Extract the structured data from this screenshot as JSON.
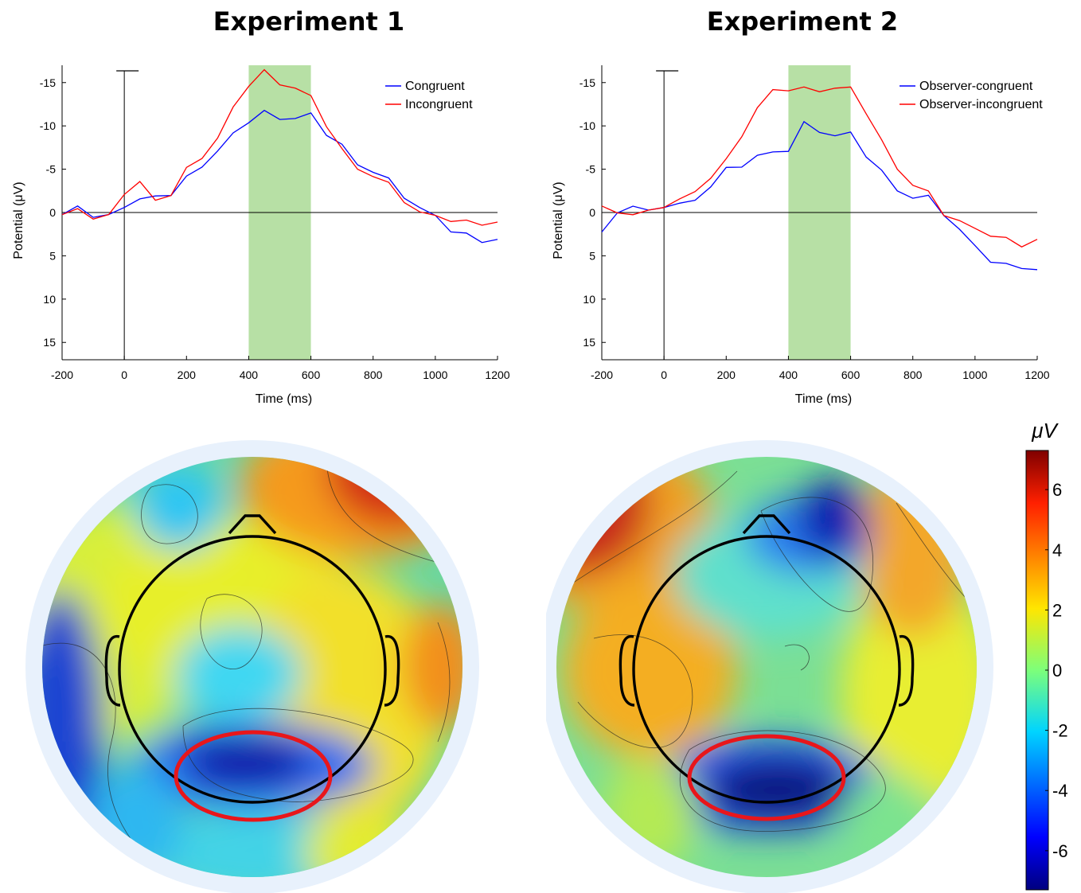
{
  "chart_data": [
    {
      "type": "line",
      "title": "Experiment 1",
      "xlabel": "Time (ms)",
      "ylabel": "Potential (μV)",
      "xlim": [
        -200,
        1200
      ],
      "ylim": [
        17,
        -17
      ],
      "y_inverted": true,
      "xticks": [
        "-200",
        "0",
        "200",
        "400",
        "600",
        "800",
        "1000",
        "1200"
      ],
      "yticks": [
        "-15",
        "-10",
        "-5",
        "0",
        "5",
        "10",
        "15"
      ],
      "highlight_window": [
        400,
        600
      ],
      "highlight_color": "#b7e0a5",
      "legend_position": "top-right",
      "x": [
        -200,
        -150,
        -100,
        -50,
        0,
        50,
        100,
        150,
        200,
        250,
        300,
        350,
        400,
        450,
        500,
        550,
        600,
        650,
        700,
        750,
        800,
        850,
        900,
        950,
        1000,
        1050,
        1100,
        1150,
        1200
      ],
      "series": [
        {
          "name": "Congruent",
          "color": "#0000ff",
          "values": [
            0,
            -0.8,
            0.8,
            0,
            -0.5,
            -1.5,
            -2,
            -2,
            -4,
            -5.5,
            -7,
            -9,
            -10.8,
            -11.3,
            -11,
            -11,
            -11,
            -9.5,
            -7.5,
            -5.5,
            -5,
            -3.5,
            -2,
            -0.5,
            0.5,
            2,
            2.5,
            3.5,
            3
          ]
        },
        {
          "name": "Incongruent",
          "color": "#ff0000",
          "values": [
            0,
            -0.5,
            1,
            0,
            -2,
            -3.5,
            -1.5,
            -2,
            -5,
            -6.5,
            -8.5,
            -12,
            -15,
            -16,
            -15,
            -14.5,
            -13,
            -10.5,
            -7,
            -5,
            -4.5,
            -3,
            -1.5,
            0,
            0.5,
            0.8,
            1,
            1.5,
            1
          ]
        }
      ]
    },
    {
      "type": "line",
      "title": "Experiment 2",
      "xlabel": "Time (ms)",
      "ylabel": "Potential (μV)",
      "xlim": [
        -200,
        1200
      ],
      "ylim": [
        17,
        -17
      ],
      "y_inverted": true,
      "xticks": [
        "-200",
        "0",
        "200",
        "400",
        "600",
        "800",
        "1000",
        "1200"
      ],
      "yticks": [
        "-15",
        "-10",
        "-5",
        "0",
        "5",
        "10",
        "15"
      ],
      "highlight_window": [
        400,
        600
      ],
      "highlight_color": "#b7e0a5",
      "legend_position": "top-right",
      "x": [
        -200,
        -150,
        -100,
        -50,
        0,
        50,
        100,
        150,
        200,
        250,
        300,
        350,
        400,
        450,
        500,
        550,
        600,
        650,
        700,
        750,
        800,
        850,
        900,
        950,
        1000,
        1050,
        1100,
        1150,
        1200
      ],
      "series": [
        {
          "name": "Observer-congruent",
          "color": "#0000ff",
          "values": [
            2,
            0,
            -0.5,
            -0.5,
            -0.5,
            -1,
            -1.5,
            -3,
            -5,
            -5.5,
            -6.5,
            -6.8,
            -7.5,
            -10,
            -9.5,
            -9,
            -8.8,
            -7,
            -4.5,
            -2.5,
            -2,
            -1.5,
            0,
            2,
            4,
            5.5,
            6,
            6.5,
            6.5
          ]
        },
        {
          "name": "Observer-incongruent",
          "color": "#ff0000",
          "values": [
            -1,
            0,
            0.5,
            -0.5,
            -0.5,
            -1.5,
            -2.5,
            -4,
            -6,
            -9,
            -12,
            -14,
            -14.5,
            -14,
            -14.2,
            -14.5,
            -14,
            -12,
            -8,
            -5,
            -3.5,
            -2,
            0,
            1,
            2,
            2.5,
            3,
            4,
            3
          ]
        }
      ]
    },
    {
      "type": "heatmap",
      "title": "",
      "colorbar_unit": "μV",
      "colorbar_ticks": [
        "6",
        "4",
        "2",
        "0",
        "-2",
        "-4",
        "-6"
      ],
      "colorbar_range": [
        -7.3,
        7.3
      ]
    }
  ]
}
